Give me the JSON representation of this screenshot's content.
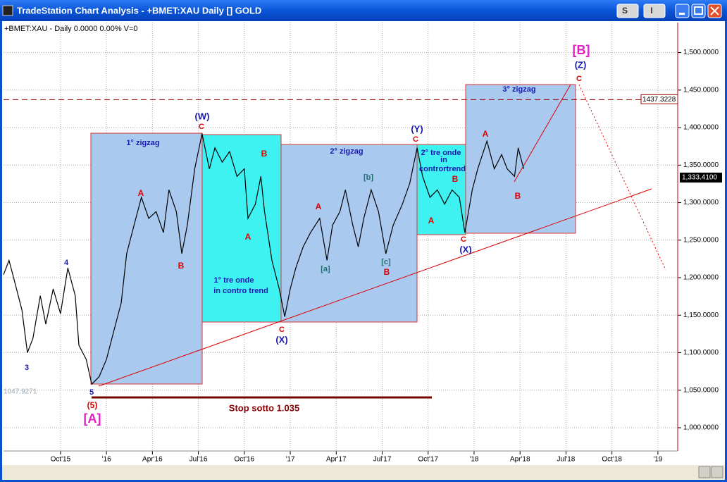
{
  "window": {
    "title": "TradeStation Chart Analysis - +BMET:XAU Daily [] GOLD",
    "buttons": [
      "S",
      "I"
    ]
  },
  "chart_header": "+BMET:XAU - Daily  0.0000  0.00%  V=0",
  "chart_data": {
    "type": "line",
    "color": "#000000",
    "x": [
      2015.44,
      2015.47,
      2015.5,
      2015.54,
      2015.57,
      2015.6,
      2015.64,
      2015.67,
      2015.71,
      2015.75,
      2015.79,
      2015.83,
      2015.85,
      2015.89,
      2015.92,
      2015.96,
      2016.0,
      2016.04,
      2016.08,
      2016.11,
      2016.15,
      2016.19,
      2016.23,
      2016.27,
      2016.31,
      2016.34,
      2016.38,
      2016.41,
      2016.44,
      2016.48,
      2016.52,
      2016.56,
      2016.59,
      2016.63,
      2016.67,
      2016.71,
      2016.75,
      2016.77,
      2016.81,
      2016.84,
      2016.86,
      2016.9,
      2016.94,
      2016.97,
      2017.0,
      2017.03,
      2017.07,
      2017.11,
      2017.16,
      2017.2,
      2017.23,
      2017.27,
      2017.3,
      2017.34,
      2017.37,
      2017.4,
      2017.44,
      2017.48,
      2017.52,
      2017.56,
      2017.61,
      2017.65,
      2017.69,
      2017.72,
      2017.76,
      2017.8,
      2017.84,
      2017.88,
      2017.92,
      2017.95,
      2017.99,
      2018.02,
      2018.07,
      2018.11,
      2018.15,
      2018.18,
      2018.22,
      2018.24,
      2018.27
    ],
    "values": [
      1204,
      1223,
      1195,
      1157,
      1100,
      1119,
      1176,
      1138,
      1185,
      1152,
      1213,
      1176,
      1110,
      1091,
      1058,
      1068,
      1091,
      1129,
      1166,
      1232,
      1270,
      1307,
      1279,
      1288,
      1260,
      1317,
      1288,
      1232,
      1270,
      1345,
      1392,
      1345,
      1373,
      1354,
      1368,
      1335,
      1345,
      1279,
      1298,
      1335,
      1288,
      1223,
      1185,
      1148,
      1185,
      1213,
      1241,
      1260,
      1279,
      1223,
      1270,
      1288,
      1317,
      1270,
      1241,
      1279,
      1317,
      1288,
      1232,
      1270,
      1298,
      1326,
      1373,
      1335,
      1307,
      1317,
      1298,
      1317,
      1307,
      1260,
      1317,
      1345,
      1382,
      1345,
      1364,
      1345,
      1335,
      1373,
      1345
    ],
    "xlim": [
      2015.44,
      2019.1
    ],
    "xticks": [
      {
        "value": 2015.75,
        "label": "Oct'15"
      },
      {
        "value": 2016,
        "label": "'16"
      },
      {
        "value": 2016.25,
        "label": "Apr'16"
      },
      {
        "value": 2016.5,
        "label": "Jul'16"
      },
      {
        "value": 2016.75,
        "label": "Oct'16"
      },
      {
        "value": 2017,
        "label": "'17"
      },
      {
        "value": 2017.25,
        "label": "Apr'17"
      },
      {
        "value": 2017.5,
        "label": "Jul'17"
      },
      {
        "value": 2017.75,
        "label": "Oct'17"
      },
      {
        "value": 2018,
        "label": "'18"
      },
      {
        "value": 2018.25,
        "label": "Apr'18"
      },
      {
        "value": 2018.5,
        "label": "Jul'18"
      },
      {
        "value": 2018.75,
        "label": "Oct'18"
      },
      {
        "value": 2019,
        "label": "'19"
      }
    ],
    "ylim": [
      969,
      1540
    ],
    "yticks": [
      {
        "value": 1000,
        "label": "1,000.0000"
      },
      {
        "value": 1050,
        "label": "1,050.0000"
      },
      {
        "value": 1100,
        "label": "1,100.0000"
      },
      {
        "value": 1150,
        "label": "1,150.0000"
      },
      {
        "value": 1200,
        "label": "1,200.0000"
      },
      {
        "value": 1250,
        "label": "1,250.0000"
      },
      {
        "value": 1300,
        "label": "1,300.0000"
      },
      {
        "value": 1350,
        "label": "1,350.0000"
      },
      {
        "value": 1400,
        "label": "1,400.0000"
      },
      {
        "value": 1450,
        "label": "1,450.0000"
      },
      {
        "value": 1500,
        "label": "1,500.0000"
      }
    ],
    "grid": true,
    "resistance": 1437.3228,
    "low_level": 1047.9271,
    "last_price": {
      "value": 1333.41,
      "label": "1,333.4100"
    },
    "annotations": [
      "(W)",
      "C",
      "1° zigzag",
      "A",
      "B",
      "4",
      "3",
      "5",
      "(5)",
      "[A]",
      "1° tre onde",
      "in contro trend",
      "B",
      "A",
      "C",
      "(X)",
      "2° zigzag",
      "A",
      "[a]",
      "[b]",
      "[c]",
      "B",
      "(Y)",
      "C",
      "2° tre onde",
      "in",
      "contrortrend",
      "B",
      "A",
      "C",
      "(X)",
      "3° zigzag",
      "A",
      "B",
      "[B]",
      "(Z)",
      "C",
      "Stop sotto 1.035"
    ]
  }
}
